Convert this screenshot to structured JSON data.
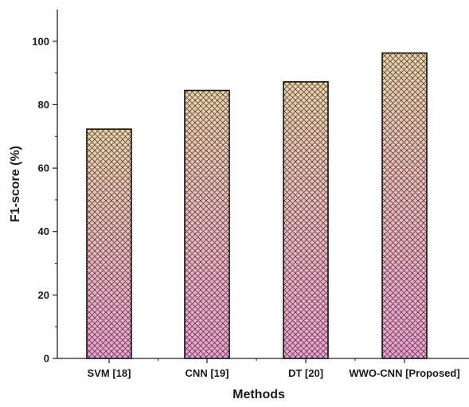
{
  "chart_data": {
    "type": "bar",
    "categories": [
      "SVM [18]",
      "CNN [19]",
      "DT [20]",
      "WWO-CNN [Proposed]"
    ],
    "values": [
      72.3,
      84.5,
      87.2,
      96.3
    ],
    "xlabel": "Methods",
    "ylabel": "F1-score (%)",
    "ylim": [
      0,
      110
    ],
    "yticks": [
      0,
      20,
      40,
      60,
      80,
      100
    ],
    "grid": false,
    "legend": "none",
    "colors": {
      "bar_top": "#e8d2a6",
      "bar_bottom": "#ee9fd2",
      "hatch": "#3a2a2a",
      "outline": "#111111",
      "axis": "#222222"
    }
  }
}
